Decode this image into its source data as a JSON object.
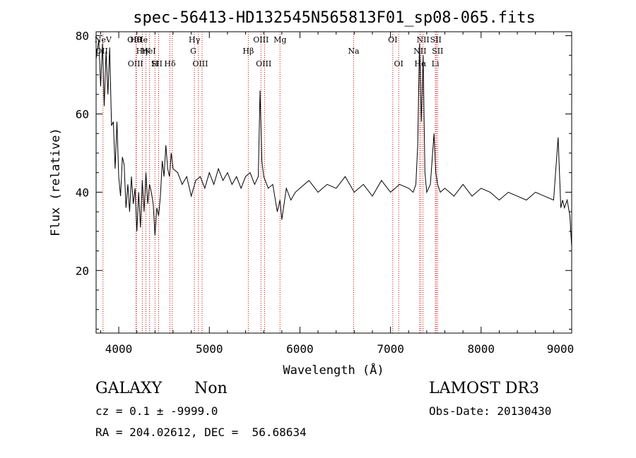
{
  "chart_data": {
    "type": "line",
    "title": "spec-56413-HD132545N565813F01_sp08-065.fits",
    "xlabel": "Wavelength (Å)",
    "ylabel": "Flux (relative)",
    "xlim": [
      3750,
      9000
    ],
    "ylim": [
      4,
      81
    ],
    "x_ticks": [
      4000,
      5000,
      6000,
      7000,
      8000,
      9000
    ],
    "y_ticks": [
      20,
      40,
      60,
      80
    ],
    "grid": false,
    "series": [
      {
        "color": "#000000",
        "x": [
          3750,
          3780,
          3800,
          3820,
          3840,
          3860,
          3880,
          3900,
          3920,
          3940,
          3960,
          3980,
          4000,
          4020,
          4040,
          4060,
          4080,
          4100,
          4120,
          4140,
          4160,
          4180,
          4200,
          4220,
          4240,
          4260,
          4280,
          4300,
          4320,
          4340,
          4360,
          4380,
          4400,
          4420,
          4440,
          4460,
          4480,
          4500,
          4520,
          4540,
          4560,
          4580,
          4600,
          4650,
          4700,
          4750,
          4800,
          4850,
          4900,
          4950,
          5000,
          5050,
          5100,
          5150,
          5200,
          5250,
          5300,
          5350,
          5400,
          5450,
          5500,
          5540,
          5560,
          5580,
          5600,
          5650,
          5700,
          5750,
          5780,
          5800,
          5850,
          5900,
          5950,
          6000,
          6100,
          6200,
          6300,
          6400,
          6500,
          6600,
          6700,
          6800,
          6900,
          7000,
          7100,
          7200,
          7250,
          7280,
          7300,
          7320,
          7340,
          7360,
          7380,
          7400,
          7440,
          7480,
          7500,
          7520,
          7550,
          7600,
          7700,
          7800,
          7900,
          8000,
          8100,
          8200,
          8300,
          8400,
          8500,
          8600,
          8700,
          8800,
          8850,
          8880,
          8900,
          8920,
          8950,
          8980,
          9000
        ],
        "values": [
          74,
          79,
          67,
          78,
          62,
          76,
          65,
          77,
          57,
          58,
          46,
          58,
          44,
          39,
          49,
          47,
          36,
          42,
          35,
          44,
          37,
          41,
          30,
          40,
          31,
          43,
          35,
          45,
          37,
          42,
          40,
          37,
          29,
          36,
          34,
          39,
          48,
          44,
          52,
          46,
          44,
          50,
          46,
          45,
          42,
          44,
          39,
          43,
          44,
          41,
          45,
          42,
          46,
          43,
          45,
          42,
          44,
          41,
          44,
          45,
          42,
          44,
          66,
          48,
          44,
          41,
          42,
          35,
          38,
          33,
          41,
          38,
          40,
          41,
          43,
          40,
          42,
          41,
          44,
          40,
          42,
          39,
          43,
          40,
          42,
          41,
          40,
          42,
          52,
          78,
          58,
          75,
          45,
          40,
          42,
          55,
          45,
          42,
          40,
          41,
          39,
          42,
          39,
          41,
          40,
          38,
          40,
          39,
          38,
          40,
          39,
          38,
          54,
          36,
          38,
          36,
          38,
          34,
          26
        ]
      }
    ],
    "annotations": [
      {
        "label": "NeV",
        "x": 3826
      },
      {
        "label": "OII",
        "x": 3727
      },
      {
        "label": "OIII",
        "x": 4185
      },
      {
        "label": "He",
        "x": 4257
      },
      {
        "label": "HeI",
        "x": 4330
      },
      {
        "label": "SII",
        "x": 4420
      },
      {
        "label": "OIII",
        "x": 4180
      },
      {
        "label": "Hη",
        "x": 4255
      },
      {
        "label": "H",
        "x": 4400
      },
      {
        "label": "Hθ",
        "x": 4188
      },
      {
        "label": "K",
        "x": 4320
      },
      {
        "label": "Hδ",
        "x": 4565
      },
      {
        "label": "Hγ",
        "x": 4835
      },
      {
        "label": "G",
        "x": 4823
      },
      {
        "label": "OIII",
        "x": 4900
      },
      {
        "label": "OIII",
        "x": 5570
      },
      {
        "label": "Hβ",
        "x": 5430
      },
      {
        "label": "OIII",
        "x": 5600
      },
      {
        "label": "Mg",
        "x": 5780
      },
      {
        "label": "Na",
        "x": 6593
      },
      {
        "label": "OI",
        "x": 7090
      },
      {
        "label": "OI",
        "x": 7025
      },
      {
        "label": "NII",
        "x": 7325
      },
      {
        "label": "Li",
        "x": 7495
      },
      {
        "label": "NII",
        "x": 7358
      },
      {
        "label": "SII",
        "x": 7520
      },
      {
        "label": "Hα",
        "x": 7330
      },
      {
        "label": "SII",
        "x": 7500
      }
    ],
    "line_marker_x": [
      3826,
      4190,
      4195,
      4260,
      4300,
      4340,
      4400,
      4440,
      4565,
      4590,
      4835,
      4880,
      4920,
      5430,
      5570,
      5610,
      5780,
      6593,
      7025,
      7090,
      7320,
      7335,
      7358,
      7495,
      7505,
      7520
    ]
  },
  "footer": {
    "class_label": "GALAXY",
    "subclass_label": "Non",
    "survey": "LAMOST DR3",
    "cz": "cz = 0.1 ± -9999.0",
    "obs_date": "Obs-Date: 20130430",
    "radec": "RA = 204.02612, DEC =  56.68634"
  }
}
